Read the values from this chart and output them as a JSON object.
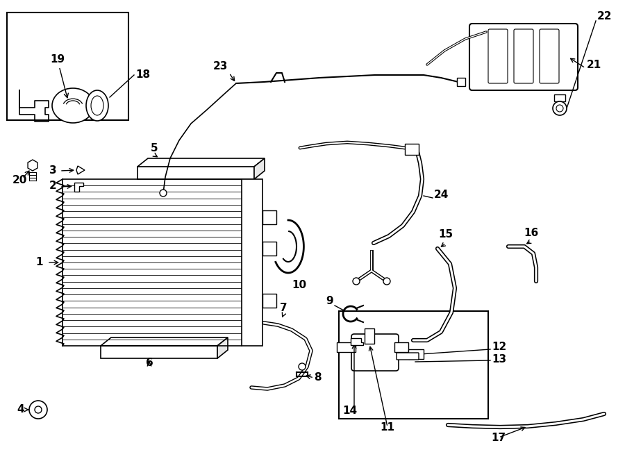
{
  "bg_color": "#ffffff",
  "line_color": "#000000",
  "lw_main": 1.5,
  "lw_thick": 3.5,
  "lw_thin": 1.0,
  "font_size": 11,
  "font_size_small": 9
}
